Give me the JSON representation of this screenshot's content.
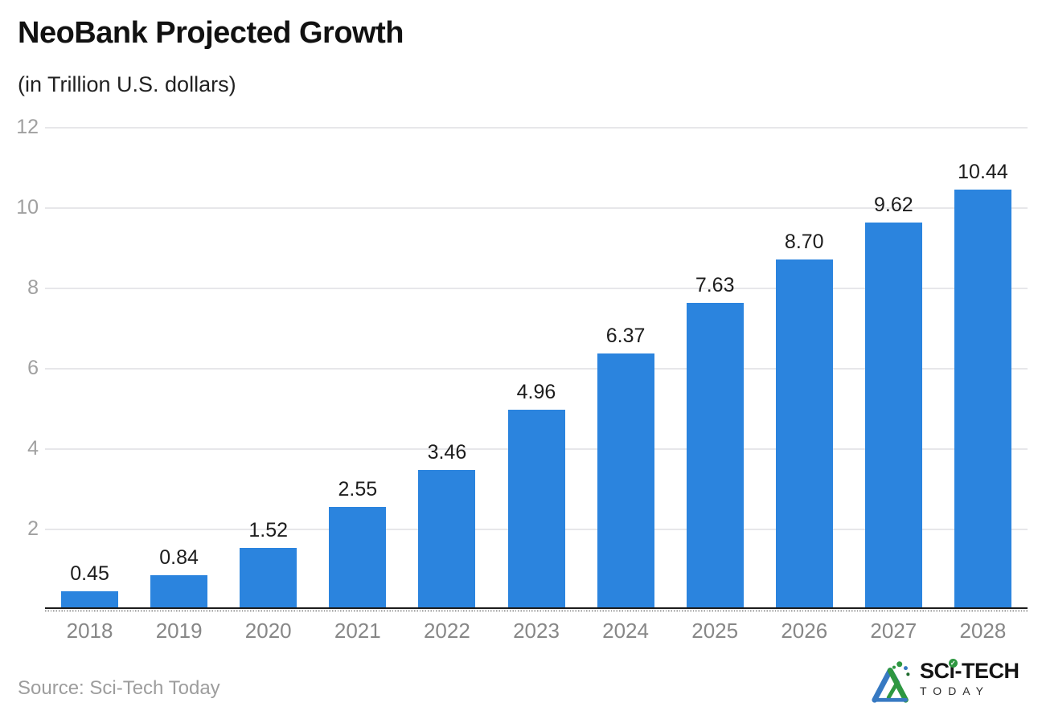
{
  "header": {
    "title": "NeoBank Projected Growth",
    "subtitle": "(in Trillion U.S. dollars)"
  },
  "chart_data": {
    "type": "bar",
    "title": "NeoBank Projected Growth",
    "subtitle": "(in Trillion U.S. dollars)",
    "categories": [
      "2018",
      "2019",
      "2020",
      "2021",
      "2022",
      "2023",
      "2024",
      "2025",
      "2026",
      "2027",
      "2028"
    ],
    "values": [
      0.45,
      0.84,
      1.52,
      2.55,
      3.46,
      4.96,
      6.37,
      7.63,
      8.7,
      9.62,
      10.44
    ],
    "value_labels": [
      "0.45",
      "0.84",
      "1.52",
      "2.55",
      "3.46",
      "4.96",
      "6.37",
      "7.63",
      "8.70",
      "9.62",
      "10.44"
    ],
    "xlabel": "",
    "ylabel": "",
    "ylim": [
      0,
      12
    ],
    "yticks": [
      2,
      4,
      6,
      8,
      10,
      12
    ],
    "grid": true,
    "legend": "none",
    "bar_color": "#2b84de",
    "grid_color": "#e7e7ea",
    "axis_color": "#1c1c1c"
  },
  "footer": {
    "source": "Source: Sci-Tech Today",
    "logo": {
      "sc": "SC",
      "i": "i",
      "tech": "-TECH",
      "today": "TODAY"
    }
  },
  "colors": {
    "accent_blue": "#2b84de",
    "logo_green": "#2e9741",
    "logo_blue": "#3779c2"
  }
}
